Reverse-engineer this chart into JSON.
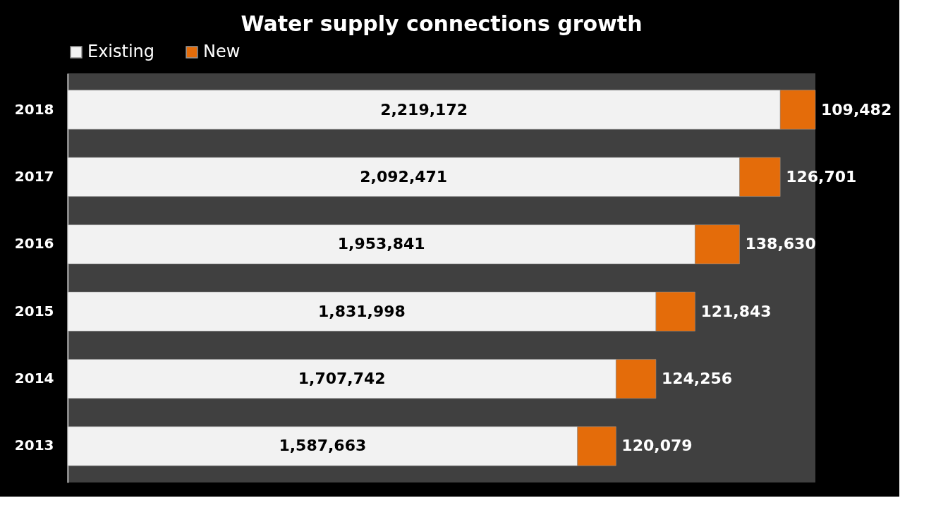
{
  "chart_data": {
    "type": "bar",
    "orientation": "horizontal",
    "stacked": true,
    "title": "Water supply connections growth",
    "categories": [
      "2018",
      "2017",
      "2016",
      "2015",
      "2014",
      "2013"
    ],
    "series": [
      {
        "name": "Existing",
        "color": "#f2f2f2",
        "values": [
          2219172,
          2092471,
          1953841,
          1831998,
          1707742,
          1587663
        ],
        "value_labels": [
          "2,219,172",
          "2,092,471",
          "1,953,841",
          "1,831,998",
          "1,707,742",
          "1,587,663"
        ]
      },
      {
        "name": "New",
        "color": "#e46c0a",
        "values": [
          109482,
          126701,
          138630,
          121843,
          124256,
          120079
        ],
        "value_labels": [
          "109,482",
          "126,701",
          "138,630",
          "121,843",
          "124,256",
          "120,079"
        ]
      }
    ],
    "legend": "top left",
    "tick_labels": "y"
  }
}
